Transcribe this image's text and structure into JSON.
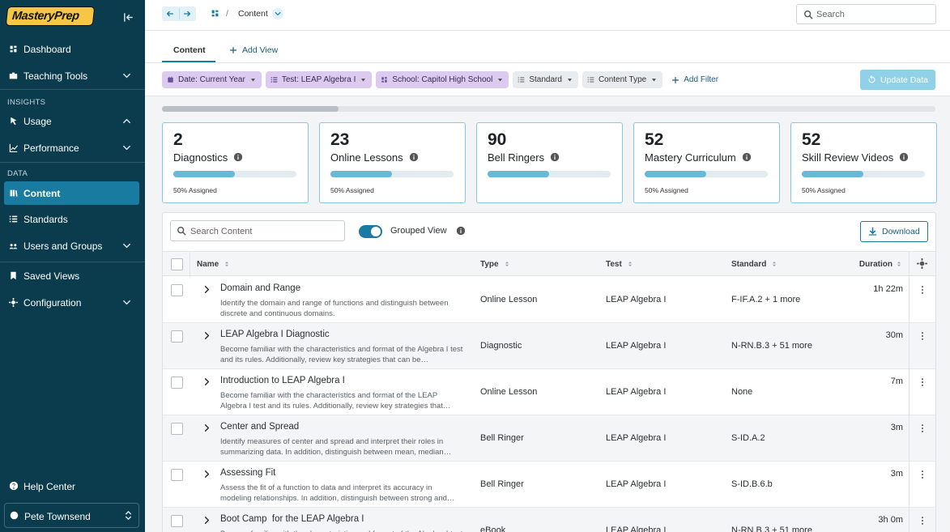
{
  "sidebar": {
    "logo": "MasteryPrep",
    "nav": [
      "Dashboard",
      "Teaching Tools",
      "INSIGHTS",
      "Usage",
      "Performance",
      "DATA",
      "Content",
      "Standards",
      "Users and Groups",
      "Saved Views",
      "Configuration"
    ],
    "help": "Help Center",
    "user": "Pete Townsend"
  },
  "topbar": {
    "separator": "/",
    "breadcrumb": "Content",
    "search": "Search"
  },
  "tabs": [
    "Content",
    "Add View"
  ],
  "filters": [
    "Date: Current Year",
    "Test: LEAP Algebra I",
    "School: Capitol High School",
    "Standard",
    "Content Type"
  ],
  "add_filter": "Add Filter",
  "update": "Update Data",
  "cards": [
    {
      "count": 2,
      "label": "Diagnostics",
      "progress": 50,
      "assigned": "50% Assigned"
    },
    {
      "count": 23,
      "label": "Online Lessons",
      "progress": 50,
      "assigned": "50% Assigned"
    },
    {
      "count": 90,
      "label": "Bell Ringers",
      "progress": 50
    },
    {
      "count": 52,
      "label": "Mastery Curriculum",
      "progress": 50,
      "assigned": "50% Assigned"
    },
    {
      "count": 52,
      "label": "Skill Review Videos",
      "progress": 50,
      "assigned": "50% Assigned"
    }
  ],
  "table": {
    "search": "Search Content",
    "grouped": "Grouped View",
    "download": "Download",
    "columns": [
      "Name",
      "Type",
      "Test",
      "Standard",
      "Duration"
    ],
    "rows": [
      {
        "name": "Domain and Range",
        "description": "Identify the domain and range of functions and distinguish between discrete and continuous domains.",
        "type": "Online Lesson",
        "test": "LEAP Algebra I",
        "standard": "F-IF.A.2 + 1 more",
        "duration": "1h 22m"
      },
      {
        "name": "LEAP Algebra I Diagnostic",
        "description": "Become familiar with the characteristics and format of the Algebra I test and its rules. Additionally, review key strategies that can be…",
        "type": "Diagnostic",
        "test": "LEAP Algebra I",
        "standard": "N-RN.B.3 + 51 more",
        "duration": "30m"
      },
      {
        "name": "Introduction to LEAP Algebra I",
        "description": "Become familiar with the characteristics and format of the LEAP Algebra I test and its rules. Additionally, review key strategies that…",
        "type": "Online Lesson",
        "test": "LEAP Algebra I",
        "standard": "None",
        "duration": "7m"
      },
      {
        "name": "Center and Spread",
        "description": "Identify measures of center and spread and interpret their roles in summarizing data. In addition, distinguish between mean, median…",
        "type": "Bell Ringer",
        "test": "LEAP Algebra I",
        "standard": "S-ID.A.2",
        "duration": "3m"
      },
      {
        "name": "Assessing Fit",
        "description": "Assess the fit of a function to data and interpret its accuracy in modeling relationships. In addition, distinguish between strong and…",
        "type": "Bell Ringer",
        "test": "LEAP Algebra I",
        "standard": "S-ID.B.6.b",
        "duration": "3m"
      },
      {
        "name": "Boot Camp  for the LEAP Algebra I",
        "description": "Become familiar with the characteristics and format of the Algebra I test and its rules.",
        "type": "eBook",
        "test": "LEAP Algebra I",
        "standard": "N-RN.B.3 + 51 more",
        "duration": "3h 0m"
      }
    ]
  }
}
